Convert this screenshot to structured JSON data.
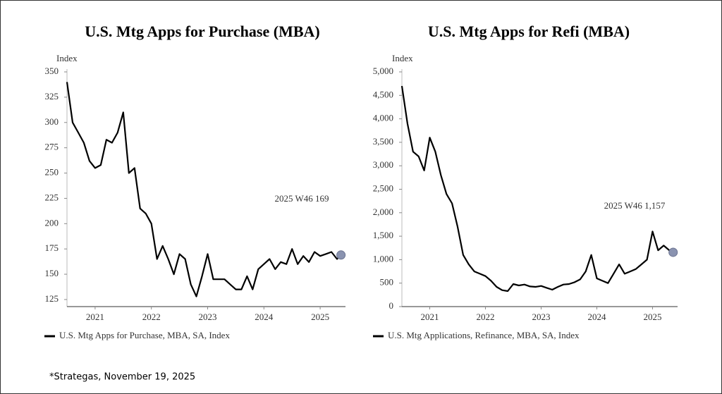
{
  "chart_data": [
    {
      "type": "line",
      "title": "U.S. Mtg Apps for Purchase (MBA)",
      "y_label": "Index",
      "x": [
        2021.0,
        2021.1,
        2021.2,
        2021.3,
        2021.4,
        2021.5,
        2021.6,
        2021.7,
        2021.8,
        2021.9,
        2022.0,
        2022.1,
        2022.2,
        2022.3,
        2022.4,
        2022.5,
        2022.6,
        2022.7,
        2022.8,
        2022.9,
        2023.0,
        2023.1,
        2023.2,
        2023.3,
        2023.4,
        2023.5,
        2023.6,
        2023.7,
        2023.8,
        2023.9,
        2024.0,
        2024.1,
        2024.2,
        2024.3,
        2024.4,
        2024.5,
        2024.6,
        2024.7,
        2024.8,
        2024.9,
        2025.0,
        2025.1,
        2025.2,
        2025.3,
        2025.4,
        2025.5,
        2025.6,
        2025.7,
        2025.8,
        2025.87
      ],
      "series": [
        {
          "name": "U.S. Mtg Apps for Purchase, MBA, SA, Index",
          "color": "#000000",
          "values": [
            340,
            300,
            290,
            280,
            262,
            255,
            258,
            283,
            280,
            290,
            310,
            250,
            255,
            215,
            210,
            200,
            165,
            178,
            165,
            150,
            170,
            165,
            140,
            128,
            148,
            170,
            145,
            145,
            145,
            140,
            135,
            135,
            148,
            135,
            155,
            160,
            165,
            155,
            162,
            160,
            175,
            160,
            168,
            162,
            172,
            168,
            170,
            172,
            165,
            169
          ]
        }
      ],
      "annotation": "2025 W46 169",
      "xlim": [
        2021.0,
        2025.95
      ],
      "ylim": [
        118,
        350
      ],
      "xticks": [
        {
          "value": 2021.5,
          "label": "2021"
        },
        {
          "value": 2022.5,
          "label": "2022"
        },
        {
          "value": 2023.5,
          "label": "2023"
        },
        {
          "value": 2024.5,
          "label": "2024"
        },
        {
          "value": 2025.5,
          "label": "2025"
        }
      ],
      "yticks": [
        125,
        150,
        175,
        200,
        225,
        250,
        275,
        300,
        325,
        350
      ],
      "grid": false
    },
    {
      "type": "line",
      "title": "U.S. Mtg Apps for Refi (MBA)",
      "y_label": "Index",
      "x": [
        2021.0,
        2021.1,
        2021.2,
        2021.3,
        2021.4,
        2021.5,
        2021.6,
        2021.7,
        2021.8,
        2021.9,
        2022.0,
        2022.1,
        2022.2,
        2022.3,
        2022.4,
        2022.5,
        2022.6,
        2022.7,
        2022.8,
        2022.9,
        2023.0,
        2023.1,
        2023.2,
        2023.3,
        2023.4,
        2023.5,
        2023.6,
        2023.7,
        2023.8,
        2023.9,
        2024.0,
        2024.1,
        2024.2,
        2024.3,
        2024.4,
        2024.5,
        2024.6,
        2024.7,
        2024.8,
        2024.9,
        2025.0,
        2025.1,
        2025.2,
        2025.3,
        2025.4,
        2025.5,
        2025.6,
        2025.7,
        2025.8,
        2025.87
      ],
      "series": [
        {
          "name": "U.S. Mtg Applications, Refinance, MBA, SA, Index",
          "color": "#000000",
          "values": [
            4700,
            3900,
            3300,
            3200,
            2900,
            3600,
            3300,
            2800,
            2400,
            2200,
            1700,
            1100,
            900,
            750,
            700,
            650,
            550,
            420,
            350,
            330,
            480,
            450,
            470,
            430,
            420,
            440,
            400,
            360,
            420,
            470,
            480,
            520,
            580,
            750,
            1100,
            600,
            550,
            500,
            700,
            900,
            700,
            750,
            800,
            900,
            1000,
            1600,
            1200,
            1300,
            1200,
            1157
          ]
        }
      ],
      "annotation": "2025 W46 1,157",
      "xlim": [
        2021.0,
        2025.95
      ],
      "ylim": [
        0,
        5000
      ],
      "xticks": [
        {
          "value": 2021.5,
          "label": "2021"
        },
        {
          "value": 2022.5,
          "label": "2022"
        },
        {
          "value": 2023.5,
          "label": "2023"
        },
        {
          "value": 2024.5,
          "label": "2024"
        },
        {
          "value": 2025.5,
          "label": "2025"
        }
      ],
      "yticks": [
        0,
        500,
        {
          "value": 1000,
          "label": "1,000"
        },
        {
          "value": 1500,
          "label": "1,500"
        },
        {
          "value": 2000,
          "label": "2,000"
        },
        {
          "value": 2500,
          "label": "2,500"
        },
        {
          "value": 3000,
          "label": "3,000"
        },
        {
          "value": 3500,
          "label": "3,500"
        },
        {
          "value": 4000,
          "label": "4,000"
        },
        {
          "value": 4500,
          "label": "4,500"
        },
        {
          "value": 5000,
          "label": "5,000"
        }
      ],
      "grid": false
    }
  ],
  "footnote": "*Strategas, November 19, 2025"
}
